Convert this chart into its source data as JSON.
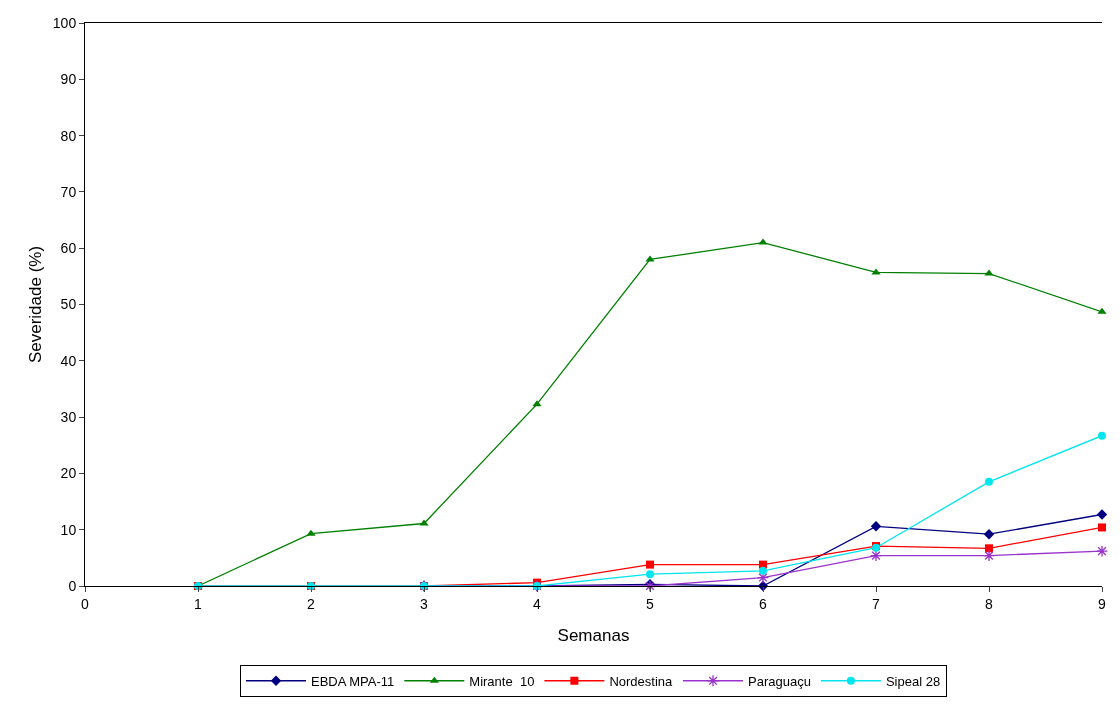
{
  "chart_data": {
    "type": "line",
    "xlabel": "Semanas",
    "ylabel": "Severidade (%)",
    "x": [
      1,
      2,
      3,
      4,
      5,
      6,
      7,
      8,
      9
    ],
    "series": [
      {
        "name": "EBDA MPA-11",
        "color": "#000080",
        "marker": "diamond",
        "values": [
          null,
          null,
          0,
          0,
          0.3,
          0,
          10.6,
          9.2,
          12.7
        ]
      },
      {
        "name": "Mirante  10",
        "color": "#008000",
        "marker": "triangle",
        "values": [
          0,
          9.3,
          11.1,
          32.3,
          58,
          61,
          55.7,
          55.5,
          48.7
        ]
      },
      {
        "name": "Nordestina",
        "color": "#ff0000",
        "marker": "square",
        "values": [
          0,
          0,
          0,
          0.6,
          3.8,
          3.8,
          7.1,
          6.7,
          10.4
        ]
      },
      {
        "name": "Paraguaçu",
        "color": "#9933cc",
        "marker": "cross",
        "values": [
          null,
          null,
          0,
          0,
          0,
          1.5,
          5.4,
          5.4,
          6.2
        ]
      },
      {
        "name": "Sipeal 28",
        "color": "#00e5ee",
        "marker": "circle",
        "values": [
          0,
          0,
          0,
          0,
          2.1,
          2.7,
          6.8,
          18.5,
          26.7
        ]
      }
    ],
    "xlim": [
      0,
      9
    ],
    "xticks": [
      0,
      1,
      2,
      3,
      4,
      5,
      6,
      7,
      8,
      9
    ],
    "ylim": [
      0,
      100
    ],
    "yticks": [
      0,
      10,
      20,
      30,
      40,
      50,
      60,
      70,
      80,
      90,
      100
    ],
    "grid": false,
    "legend": "bottom",
    "line_style": "solid"
  }
}
